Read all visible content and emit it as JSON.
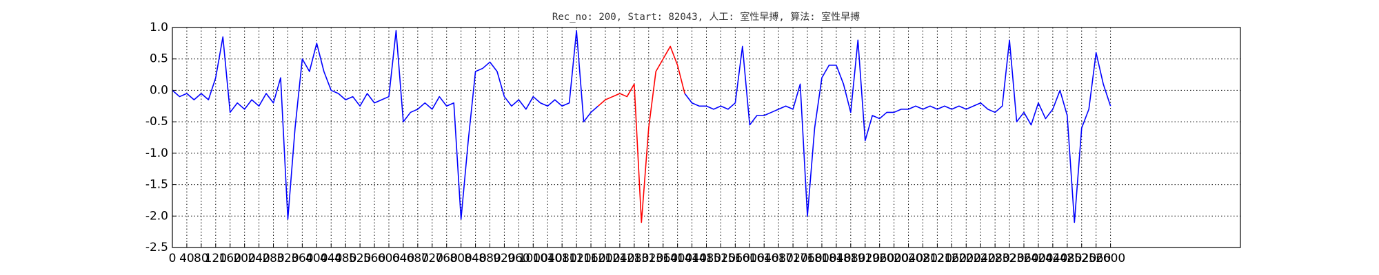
{
  "chart_data": {
    "type": "line",
    "title": "Rec_no: 200, Start: 82043, 人工: 室性早搏, 算法: 室性早搏",
    "x": [
      0,
      20,
      40,
      60,
      80,
      100,
      120,
      140,
      160,
      180,
      200,
      220,
      240,
      260,
      280,
      300,
      320,
      340,
      360,
      380,
      400,
      420,
      440,
      460,
      480,
      500,
      520,
      540,
      560,
      580,
      600,
      620,
      640,
      660,
      680,
      700,
      720,
      740,
      760,
      780,
      800,
      820,
      840,
      860,
      880,
      900,
      920,
      940,
      960,
      980,
      1000,
      1020,
      1040,
      1060,
      1080,
      1100,
      1120,
      1140,
      1160,
      1180,
      1200,
      1220,
      1240,
      1260,
      1280,
      1300,
      1320,
      1340,
      1360,
      1380,
      1400,
      1420,
      1440,
      1460,
      1480,
      1500,
      1520,
      1540,
      1560,
      1580,
      1600,
      1620,
      1640,
      1660,
      1680,
      1700,
      1720,
      1740,
      1760,
      1780,
      1800,
      1820,
      1840,
      1860,
      1880,
      1900,
      1920,
      1940,
      1960,
      1980,
      2000,
      2020,
      2040,
      2060,
      2080,
      2100,
      2120,
      2140,
      2160,
      2180,
      2200,
      2220,
      2240,
      2260,
      2280,
      2300,
      2320,
      2340,
      2360,
      2380,
      2400,
      2420,
      2440,
      2460,
      2480,
      2500,
      2520,
      2540,
      2560,
      2580,
      2600
    ],
    "series": [
      {
        "color": "#0000ff",
        "values": [
          0.0,
          -0.1,
          -0.05,
          -0.15,
          -0.05,
          -0.15,
          0.2,
          0.85,
          -0.35,
          -0.2,
          -0.3,
          -0.15,
          -0.25,
          -0.05,
          -0.2,
          0.2,
          -2.05,
          -0.6,
          0.5,
          0.3,
          0.75,
          0.3,
          0.0,
          -0.05,
          -0.15,
          -0.1,
          -0.25,
          -0.05,
          -0.2,
          -0.15,
          -0.1,
          0.95,
          -0.5,
          -0.35,
          -0.3,
          -0.2,
          -0.3,
          -0.1,
          -0.25,
          -0.2,
          -2.05,
          -0.8,
          0.3,
          0.35,
          0.45,
          0.3,
          -0.1,
          -0.25,
          -0.15,
          -0.3,
          -0.1,
          -0.2,
          -0.25,
          -0.15,
          -0.25,
          -0.2,
          0.95,
          -0.5,
          -0.35,
          -0.25,
          null,
          null,
          null,
          null,
          null,
          null,
          null,
          null,
          null,
          null,
          null,
          -0.05,
          -0.2,
          -0.25,
          -0.25,
          -0.3,
          -0.25,
          -0.3,
          -0.2,
          0.7,
          -0.55,
          -0.4,
          -0.4,
          -0.35,
          -0.3,
          -0.25,
          -0.3,
          0.1,
          -2.0,
          -0.6,
          0.2,
          0.4,
          0.4,
          0.1,
          -0.35,
          0.8,
          -0.8,
          -0.4,
          -0.45,
          -0.35,
          -0.35,
          -0.3,
          -0.3,
          -0.25,
          -0.3,
          -0.25,
          -0.3,
          -0.25,
          -0.3,
          -0.25,
          -0.3,
          -0.25,
          -0.2,
          -0.3,
          -0.35,
          -0.25,
          0.8,
          -0.5,
          -0.35,
          -0.55,
          -0.2,
          -0.45,
          -0.3,
          0.0,
          -0.4,
          -2.1,
          -0.6,
          -0.3,
          0.6,
          0.1,
          -0.25
        ]
      },
      {
        "color": "#ff0000",
        "values": [
          null,
          null,
          null,
          null,
          null,
          null,
          null,
          null,
          null,
          null,
          null,
          null,
          null,
          null,
          null,
          null,
          null,
          null,
          null,
          null,
          null,
          null,
          null,
          null,
          null,
          null,
          null,
          null,
          null,
          null,
          null,
          null,
          null,
          null,
          null,
          null,
          null,
          null,
          null,
          null,
          null,
          null,
          null,
          null,
          null,
          null,
          null,
          null,
          null,
          null,
          null,
          null,
          null,
          null,
          null,
          null,
          null,
          null,
          null,
          -0.25,
          -0.15,
          -0.1,
          -0.05,
          -0.1,
          0.1,
          -2.1,
          -0.6,
          0.3,
          0.5,
          0.7,
          0.4,
          -0.05,
          null,
          null,
          null,
          null,
          null,
          null,
          null,
          null,
          null,
          null,
          null,
          null,
          null,
          null,
          null,
          null,
          null,
          null,
          null,
          null,
          null,
          null,
          null,
          null,
          null,
          null,
          null,
          null,
          null,
          null,
          null,
          null,
          null,
          null,
          null,
          null,
          null,
          null,
          null,
          null,
          null,
          null,
          null,
          null,
          null,
          null,
          null,
          null,
          null,
          null,
          null,
          null,
          null,
          null,
          null,
          null,
          null,
          null,
          null
        ]
      }
    ],
    "xlim": [
      0,
      2960
    ],
    "xticks": [
      0,
      40,
      80,
      120,
      160,
      200,
      240,
      280,
      320,
      360,
      400,
      440,
      480,
      520,
      560,
      600,
      640,
      680,
      720,
      760,
      800,
      840,
      880,
      920,
      960,
      1000,
      1040,
      1080,
      1120,
      1160,
      1200,
      1240,
      1280,
      1320,
      1360,
      1400,
      1440,
      1480,
      1520,
      1560,
      1600,
      1640,
      1680,
      1720,
      1760,
      1800,
      1840,
      1880,
      1920,
      1960,
      2000,
      2040,
      2080,
      2120,
      2160,
      2200,
      2240,
      2280,
      2320,
      2360,
      2400,
      2440,
      2480,
      2520,
      2560,
      2600
    ],
    "ylim": [
      -2.5,
      1.0
    ],
    "yticks": [
      -2.5,
      {
        "value": -2.0,
        "label": "-2.0"
      },
      -1.5,
      {
        "value": -1.0,
        "label": "-1.0"
      },
      -0.5,
      {
        "value": 0.0,
        "label": "0.0"
      },
      0.5,
      {
        "value": 1.0,
        "label": "1.0"
      }
    ],
    "grid": true
  }
}
